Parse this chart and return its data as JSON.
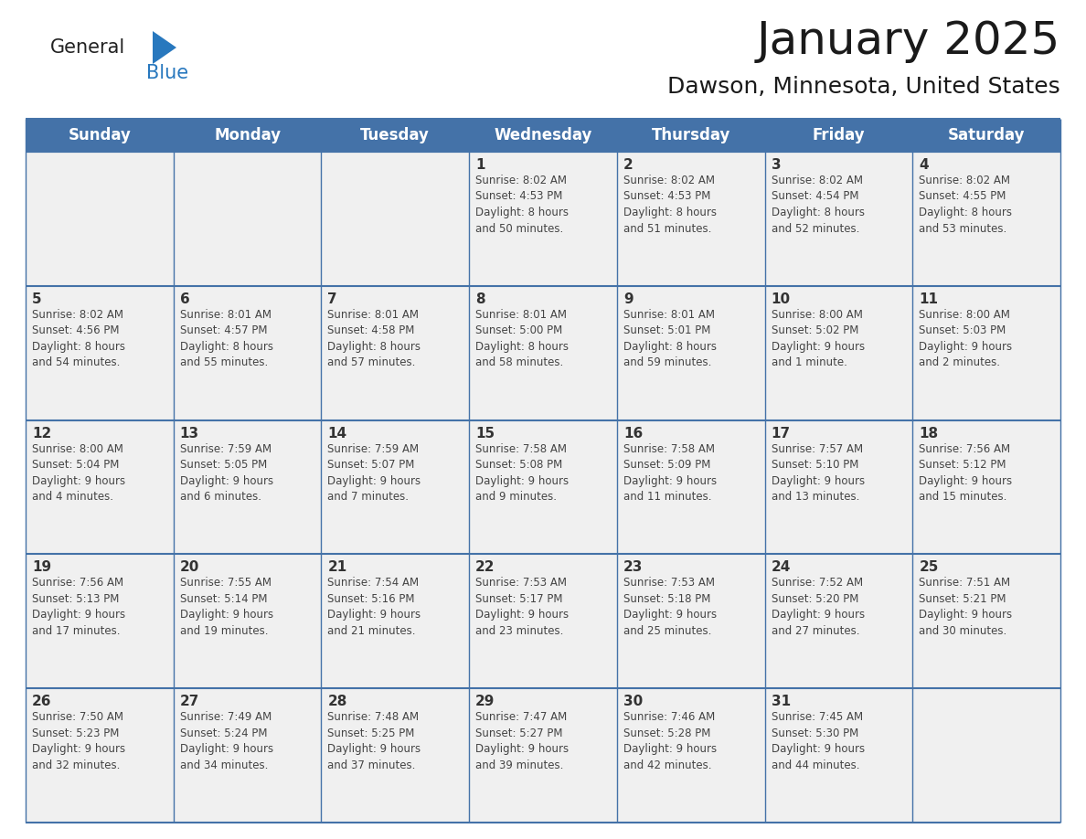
{
  "title": "January 2025",
  "subtitle": "Dawson, Minnesota, United States",
  "days_of_week": [
    "Sunday",
    "Monday",
    "Tuesday",
    "Wednesday",
    "Thursday",
    "Friday",
    "Saturday"
  ],
  "header_bg": "#4472a8",
  "header_text_color": "#ffffff",
  "bg_color": "#ffffff",
  "cell_bg": "#f0f0f0",
  "border_color": "#4472a8",
  "day_num_color": "#333333",
  "cell_text_color": "#444444",
  "title_color": "#1a1a1a",
  "subtitle_color": "#1a1a1a",
  "logo_black": "#222222",
  "logo_blue": "#2878be",
  "calendar_data": [
    [
      {
        "day": null,
        "text": ""
      },
      {
        "day": null,
        "text": ""
      },
      {
        "day": null,
        "text": ""
      },
      {
        "day": 1,
        "text": "Sunrise: 8:02 AM\nSunset: 4:53 PM\nDaylight: 8 hours\nand 50 minutes."
      },
      {
        "day": 2,
        "text": "Sunrise: 8:02 AM\nSunset: 4:53 PM\nDaylight: 8 hours\nand 51 minutes."
      },
      {
        "day": 3,
        "text": "Sunrise: 8:02 AM\nSunset: 4:54 PM\nDaylight: 8 hours\nand 52 minutes."
      },
      {
        "day": 4,
        "text": "Sunrise: 8:02 AM\nSunset: 4:55 PM\nDaylight: 8 hours\nand 53 minutes."
      }
    ],
    [
      {
        "day": 5,
        "text": "Sunrise: 8:02 AM\nSunset: 4:56 PM\nDaylight: 8 hours\nand 54 minutes."
      },
      {
        "day": 6,
        "text": "Sunrise: 8:01 AM\nSunset: 4:57 PM\nDaylight: 8 hours\nand 55 minutes."
      },
      {
        "day": 7,
        "text": "Sunrise: 8:01 AM\nSunset: 4:58 PM\nDaylight: 8 hours\nand 57 minutes."
      },
      {
        "day": 8,
        "text": "Sunrise: 8:01 AM\nSunset: 5:00 PM\nDaylight: 8 hours\nand 58 minutes."
      },
      {
        "day": 9,
        "text": "Sunrise: 8:01 AM\nSunset: 5:01 PM\nDaylight: 8 hours\nand 59 minutes."
      },
      {
        "day": 10,
        "text": "Sunrise: 8:00 AM\nSunset: 5:02 PM\nDaylight: 9 hours\nand 1 minute."
      },
      {
        "day": 11,
        "text": "Sunrise: 8:00 AM\nSunset: 5:03 PM\nDaylight: 9 hours\nand 2 minutes."
      }
    ],
    [
      {
        "day": 12,
        "text": "Sunrise: 8:00 AM\nSunset: 5:04 PM\nDaylight: 9 hours\nand 4 minutes."
      },
      {
        "day": 13,
        "text": "Sunrise: 7:59 AM\nSunset: 5:05 PM\nDaylight: 9 hours\nand 6 minutes."
      },
      {
        "day": 14,
        "text": "Sunrise: 7:59 AM\nSunset: 5:07 PM\nDaylight: 9 hours\nand 7 minutes."
      },
      {
        "day": 15,
        "text": "Sunrise: 7:58 AM\nSunset: 5:08 PM\nDaylight: 9 hours\nand 9 minutes."
      },
      {
        "day": 16,
        "text": "Sunrise: 7:58 AM\nSunset: 5:09 PM\nDaylight: 9 hours\nand 11 minutes."
      },
      {
        "day": 17,
        "text": "Sunrise: 7:57 AM\nSunset: 5:10 PM\nDaylight: 9 hours\nand 13 minutes."
      },
      {
        "day": 18,
        "text": "Sunrise: 7:56 AM\nSunset: 5:12 PM\nDaylight: 9 hours\nand 15 minutes."
      }
    ],
    [
      {
        "day": 19,
        "text": "Sunrise: 7:56 AM\nSunset: 5:13 PM\nDaylight: 9 hours\nand 17 minutes."
      },
      {
        "day": 20,
        "text": "Sunrise: 7:55 AM\nSunset: 5:14 PM\nDaylight: 9 hours\nand 19 minutes."
      },
      {
        "day": 21,
        "text": "Sunrise: 7:54 AM\nSunset: 5:16 PM\nDaylight: 9 hours\nand 21 minutes."
      },
      {
        "day": 22,
        "text": "Sunrise: 7:53 AM\nSunset: 5:17 PM\nDaylight: 9 hours\nand 23 minutes."
      },
      {
        "day": 23,
        "text": "Sunrise: 7:53 AM\nSunset: 5:18 PM\nDaylight: 9 hours\nand 25 minutes."
      },
      {
        "day": 24,
        "text": "Sunrise: 7:52 AM\nSunset: 5:20 PM\nDaylight: 9 hours\nand 27 minutes."
      },
      {
        "day": 25,
        "text": "Sunrise: 7:51 AM\nSunset: 5:21 PM\nDaylight: 9 hours\nand 30 minutes."
      }
    ],
    [
      {
        "day": 26,
        "text": "Sunrise: 7:50 AM\nSunset: 5:23 PM\nDaylight: 9 hours\nand 32 minutes."
      },
      {
        "day": 27,
        "text": "Sunrise: 7:49 AM\nSunset: 5:24 PM\nDaylight: 9 hours\nand 34 minutes."
      },
      {
        "day": 28,
        "text": "Sunrise: 7:48 AM\nSunset: 5:25 PM\nDaylight: 9 hours\nand 37 minutes."
      },
      {
        "day": 29,
        "text": "Sunrise: 7:47 AM\nSunset: 5:27 PM\nDaylight: 9 hours\nand 39 minutes."
      },
      {
        "day": 30,
        "text": "Sunrise: 7:46 AM\nSunset: 5:28 PM\nDaylight: 9 hours\nand 42 minutes."
      },
      {
        "day": 31,
        "text": "Sunrise: 7:45 AM\nSunset: 5:30 PM\nDaylight: 9 hours\nand 44 minutes."
      },
      {
        "day": null,
        "text": ""
      }
    ]
  ]
}
